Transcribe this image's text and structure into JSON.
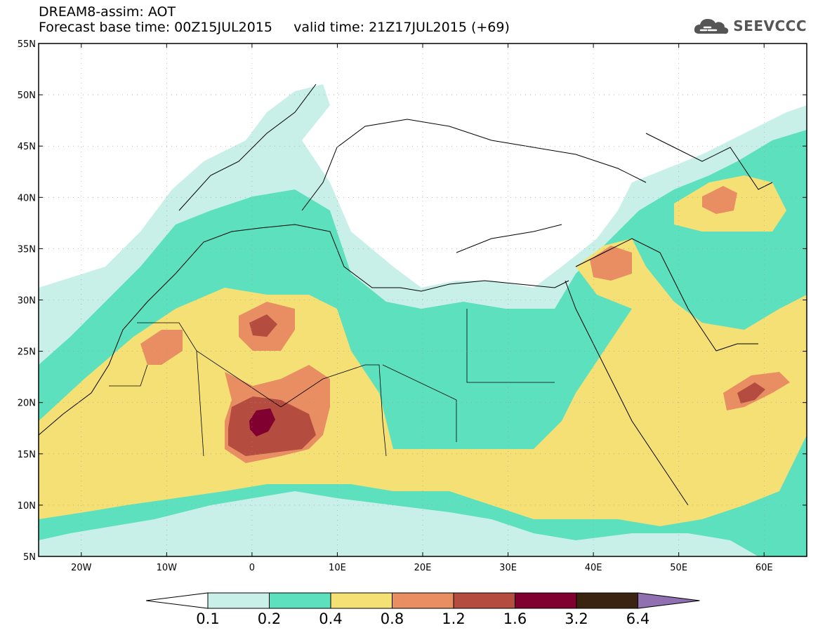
{
  "header": {
    "title_line1": "DREAM8-assim: AOT",
    "base_time_label": "Forecast base time: 00Z15JUL2015",
    "valid_time_label": "valid time: 21Z17JUL2015 (+69)",
    "logo_text": "SEEVCCC"
  },
  "map": {
    "lat_labels": [
      "55N",
      "50N",
      "45N",
      "40N",
      "35N",
      "30N",
      "25N",
      "20N",
      "15N",
      "10N",
      "5N"
    ],
    "lon_labels": [
      "20W",
      "10W",
      "0",
      "10E",
      "20E",
      "30E",
      "40E",
      "50E",
      "60E"
    ],
    "lat_range": [
      5,
      55
    ],
    "lon_range": [
      -25,
      65
    ]
  },
  "colorbar": {
    "labels": [
      "0.1",
      "0.2",
      "0.4",
      "0.8",
      "1.2",
      "1.6",
      "3.2",
      "6.4"
    ],
    "colors": [
      "#c8f0e8",
      "#5ce0be",
      "#f5e075",
      "#e88e62",
      "#b44c40",
      "#800030",
      "#3a2310",
      "#9070b0"
    ]
  },
  "colors": {
    "very_light": "#c8f0e8",
    "light": "#5ce0be",
    "medium": "#f5e075",
    "high": "#e88e62",
    "higher": "#b44c40",
    "very_high": "#800030",
    "extreme": "#3a2310",
    "max": "#9070b0"
  }
}
